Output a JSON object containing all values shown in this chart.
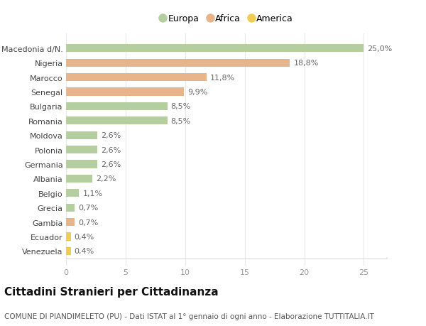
{
  "categories": [
    "Venezuela",
    "Ecuador",
    "Gambia",
    "Grecia",
    "Belgio",
    "Albania",
    "Germania",
    "Polonia",
    "Moldova",
    "Romania",
    "Bulgaria",
    "Senegal",
    "Marocco",
    "Nigeria",
    "Macedonia d/N."
  ],
  "values": [
    0.4,
    0.4,
    0.7,
    0.7,
    1.1,
    2.2,
    2.6,
    2.6,
    2.6,
    8.5,
    8.5,
    9.9,
    11.8,
    18.8,
    25.0
  ],
  "labels": [
    "0,4%",
    "0,4%",
    "0,7%",
    "0,7%",
    "1,1%",
    "2,2%",
    "2,6%",
    "2,6%",
    "2,6%",
    "8,5%",
    "8,5%",
    "9,9%",
    "11,8%",
    "18,8%",
    "25,0%"
  ],
  "continent": [
    "America",
    "America",
    "Africa",
    "Europa",
    "Europa",
    "Europa",
    "Europa",
    "Europa",
    "Europa",
    "Europa",
    "Europa",
    "Africa",
    "Africa",
    "Africa",
    "Europa"
  ],
  "colors": {
    "Europa": "#b5ceA0",
    "Africa": "#e8b48a",
    "America": "#f0cc55"
  },
  "legend_order": [
    "Europa",
    "Africa",
    "America"
  ],
  "legend_colors": [
    "#b5ceA0",
    "#e8b48a",
    "#f0cc55"
  ],
  "title": "Cittadini Stranieri per Cittadinanza",
  "subtitle": "COMUNE DI PIANDIMELETO (PU) - Dati ISTAT al 1° gennaio di ogni anno - Elaborazione TUTTITALIA.IT",
  "xlim": [
    0,
    27
  ],
  "xticks": [
    0,
    5,
    10,
    15,
    20,
    25
  ],
  "background_color": "#ffffff",
  "grid_color": "#e8e8e8",
  "bar_height": 0.55,
  "label_fontsize": 8,
  "tick_fontsize": 8,
  "ytick_fontsize": 8,
  "title_fontsize": 11,
  "subtitle_fontsize": 7.5
}
